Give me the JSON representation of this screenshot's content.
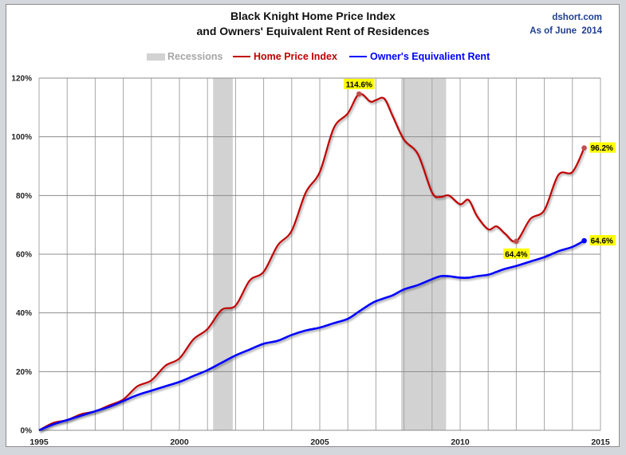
{
  "chart_data": {
    "type": "line",
    "title": "Black Knight Home Price Index",
    "subtitle": "and Owners' Equivalent Rent of Residences",
    "source": "dshort.com",
    "as_of": "As of June 2014",
    "xlabel": "",
    "ylabel": "",
    "xlim": [
      1995,
      2015
    ],
    "ylim": [
      0,
      120
    ],
    "x_ticks": [
      "1995",
      "2000",
      "2005",
      "2010",
      "2015"
    ],
    "y_ticks": [
      "0%",
      "20%",
      "40%",
      "60%",
      "80%",
      "100%",
      "120%"
    ],
    "grid": true,
    "legend": [
      "Recessions",
      "Home Price Index",
      "Owner's Equivalient Rent"
    ],
    "legend_position": "top",
    "recessions": [
      {
        "start": 2001.2,
        "end": 2001.9
      },
      {
        "start": 2007.9,
        "end": 2009.5
      }
    ],
    "x": [
      1995.0,
      1995.5,
      1996.0,
      1996.5,
      1997.0,
      1997.5,
      1998.0,
      1998.5,
      1999.0,
      1999.5,
      2000.0,
      2000.5,
      2001.0,
      2001.5,
      2002.0,
      2002.5,
      2003.0,
      2003.5,
      2004.0,
      2004.5,
      2005.0,
      2005.5,
      2006.0,
      2006.4,
      2006.8,
      2007.0,
      2007.3,
      2007.6,
      2008.0,
      2008.5,
      2009.0,
      2009.3,
      2009.6,
      2010.0,
      2010.3,
      2010.6,
      2011.0,
      2011.3,
      2011.6,
      2012.0,
      2012.5,
      2013.0,
      2013.5,
      2014.0,
      2014.42
    ],
    "series": [
      {
        "name": "Home Price Index",
        "color": "#c00000",
        "values": [
          0,
          2.5,
          3.5,
          5.5,
          6.5,
          8.5,
          10.5,
          15,
          17,
          22,
          24.5,
          31,
          34.5,
          41,
          42.5,
          51,
          54,
          63,
          68,
          81,
          88,
          103,
          108,
          114.6,
          112,
          112.5,
          113,
          107,
          99,
          94,
          81,
          79.5,
          80,
          77,
          78.5,
          73,
          68.5,
          69.5,
          67,
          64.4,
          72,
          75,
          87,
          88,
          96.2
        ]
      },
      {
        "name": "Owner's Equivalient Rent",
        "color": "#0000ff",
        "values": [
          0,
          2,
          3.5,
          5,
          6.5,
          8,
          10,
          12,
          13.5,
          15,
          16.5,
          18.5,
          20.5,
          23,
          25.5,
          27.5,
          29.5,
          30.5,
          32.5,
          34,
          35,
          36.5,
          38,
          40.5,
          43,
          44,
          45,
          46,
          48,
          49.5,
          51.5,
          52.5,
          52.5,
          52,
          52,
          52.5,
          53,
          54,
          55,
          56,
          57.5,
          59,
          61,
          62.5,
          64.6
        ]
      }
    ],
    "annotations": [
      {
        "label": "114.6%",
        "x": 2006.4,
        "y": 114.6,
        "series": "Home Price Index"
      },
      {
        "label": "64.4%",
        "x": 2012.0,
        "y": 64.4,
        "series": "Home Price Index"
      },
      {
        "label": "96.2%",
        "x": 2014.42,
        "y": 96.2,
        "series": "Home Price Index"
      },
      {
        "label": "64.6%",
        "x": 2014.42,
        "y": 64.6,
        "series": "Owner's Equivalient Rent"
      }
    ]
  },
  "header": {
    "title_line1": "Black Knight Home Price Index",
    "title_line2": "and Owners' Equivalent Rent of Residences",
    "source": "dshort.com",
    "as_of": "As of June  2014"
  },
  "legend": {
    "recessions": "Recessions",
    "hpi": "Home Price Index",
    "oer": "Owner's Equivalient Rent",
    "recession_color": "#d2d2d2",
    "hpi_color": "#c00000",
    "oer_color": "#0000ff"
  }
}
